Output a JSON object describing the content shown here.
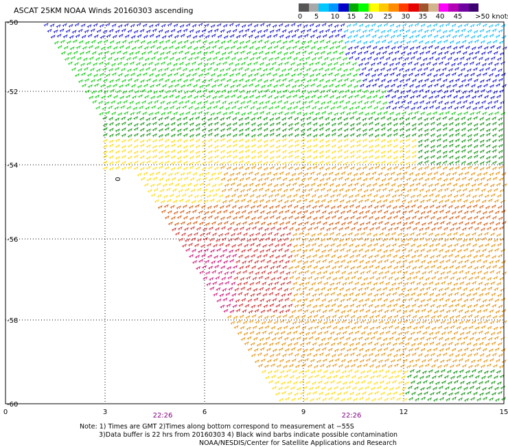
{
  "title": "ASCAT 25KM NOAA Winds 20160303 ascending",
  "colorbar": {
    "colors": [
      "#555555",
      "#a8a8a8",
      "#00c8ff",
      "#0096ff",
      "#0000c8",
      "#00aa00",
      "#00ff00",
      "#ffff00",
      "#ffc800",
      "#ff8c00",
      "#ff3c00",
      "#e60000",
      "#a0522d",
      "#d2b48c",
      "#ff00ff",
      "#b400b4",
      "#6e00a0",
      "#3c0070"
    ],
    "tick_labels": [
      "0",
      "5",
      "10",
      "15",
      "20",
      "25",
      "30",
      "35",
      "40",
      "45",
      ">50 knots"
    ]
  },
  "axes": {
    "y_labels": [
      "-50",
      "-52",
      "-54",
      "-56",
      "-58",
      "-60"
    ],
    "x_labels": [
      "0",
      "3",
      "6",
      "9",
      "12",
      "15"
    ],
    "time_labels": [
      "22:26",
      "22:26"
    ]
  },
  "map_marker": "0",
  "notes": [
    "Note: 1) Times are GMT 2)Times along bottom correspond to measurement at −55S",
    "3)Data buffer is 22 hrs from 20160303 4) Black wind barbs indicate possible contamination",
    "NOAA/NESDIS/Center for Satellite Applications and Research"
  ],
  "wind_field_colors": {
    "dark_blue": "#0000c8",
    "cyan": "#00b4ff",
    "green": "#00c800",
    "dark_green": "#008c00",
    "yellow": "#ffd700",
    "orange": "#e08a00",
    "dark_orange": "#d05000",
    "red": "#c81e1e",
    "magenta": "#c8006e"
  }
}
